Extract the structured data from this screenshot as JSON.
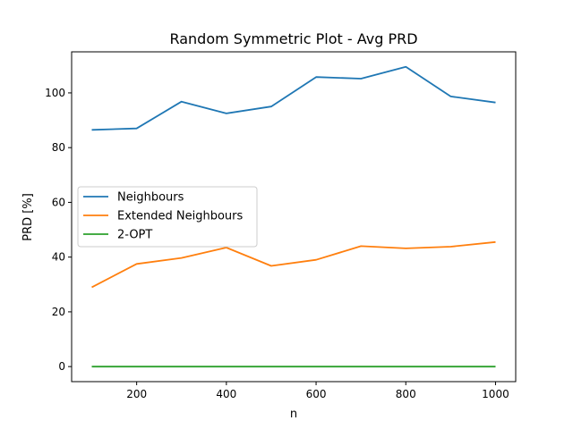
{
  "chart_data": {
    "type": "line",
    "title": "Random Symmetric Plot - Avg PRD",
    "xlabel": "n",
    "ylabel": "PRD [%]",
    "xlim": [
      55,
      1045
    ],
    "ylim": [
      -5.5,
      115
    ],
    "xticks": [
      200,
      400,
      600,
      800,
      1000
    ],
    "yticks": [
      0,
      20,
      40,
      60,
      80,
      100
    ],
    "x": [
      100,
      200,
      300,
      400,
      500,
      600,
      700,
      800,
      900,
      1000
    ],
    "legend_position": "center-left",
    "grid": false,
    "series": [
      {
        "name": "Neighbours",
        "color": "#1f77b4",
        "values": [
          86.5,
          87.0,
          96.8,
          92.5,
          95.0,
          105.8,
          105.2,
          109.5,
          98.7,
          96.5
        ]
      },
      {
        "name": "Extended Neighbours",
        "color": "#ff7f0e",
        "values": [
          29.0,
          37.5,
          39.7,
          43.5,
          36.8,
          39.0,
          44.0,
          43.2,
          43.8,
          45.5
        ]
      },
      {
        "name": "2-OPT",
        "color": "#2ca02c",
        "values": [
          0,
          0,
          0,
          0,
          0,
          0,
          0,
          0,
          0,
          0
        ]
      }
    ]
  }
}
